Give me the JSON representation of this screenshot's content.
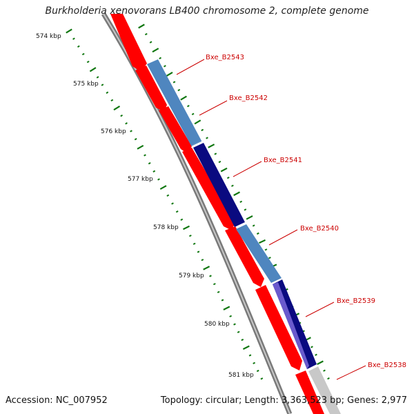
{
  "title": "Burkholderia xenovorans LB400 chromosome 2, complete genome",
  "footer": {
    "accession": "Accession: NC_007952",
    "summary": "Topology: circular; Length: 3,363,523 bp; Genes: 2,977"
  },
  "colors": {
    "cds": "#ff0000",
    "backbone": "#8c8c8c",
    "gc_ticks": "#117711",
    "label": "#cc0000",
    "steel_blue": "#4f86bf",
    "navy": "#0a0a80",
    "slate_blue": "#6a5acd",
    "light_gray": "#c8c8c8"
  },
  "kbp_labels": [
    "574 kbp",
    "575 kbp",
    "576 kbp",
    "577 kbp",
    "578 kbp",
    "579 kbp",
    "580 kbp",
    "581 kbp"
  ],
  "gene_labels": [
    "Bxe_B2543",
    "Bxe_B2542",
    "Bxe_B2541",
    "Bxe_B2540",
    "Bxe_B2539",
    "Bxe_B2538"
  ]
}
